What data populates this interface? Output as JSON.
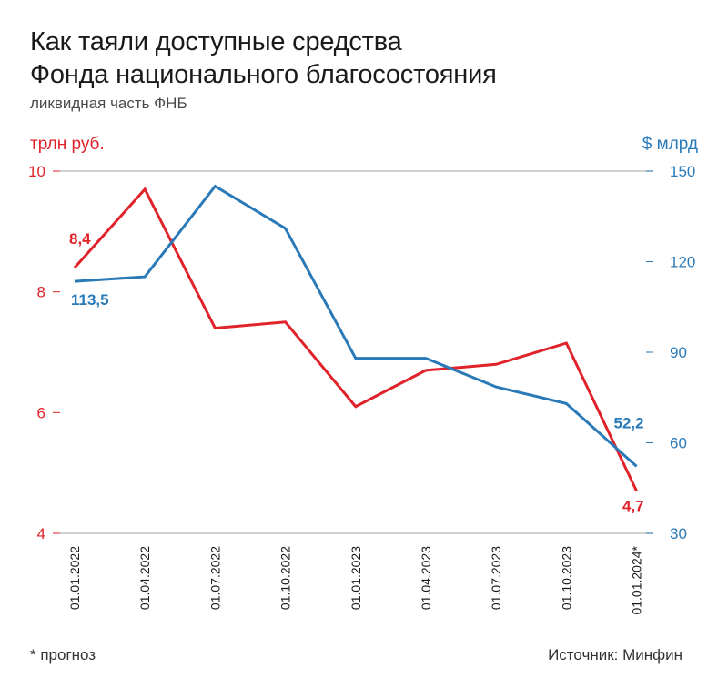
{
  "title_line1": "Как таяли доступные средства",
  "title_line2": "Фонда национального благосостояния",
  "subtitle": "ликвидная часть ФНБ",
  "footnote": "* прогноз",
  "source": "Источник: Минфин",
  "chart_data": {
    "type": "line",
    "categories": [
      "01.01.2022",
      "01.04.2022",
      "01.07.2022",
      "01.10.2022",
      "01.01.2023",
      "01.04.2023",
      "01.07.2023",
      "01.10.2023",
      "01.01.2024*"
    ],
    "y_left": {
      "label": "трлн руб.",
      "ylim": [
        4,
        10
      ],
      "ticks": [
        "4",
        "6",
        "8",
        "10"
      ],
      "color": "#e0232b"
    },
    "y_right": {
      "label": "$ млрд",
      "ylim": [
        30,
        150
      ],
      "ticks": [
        "30",
        "60",
        "90",
        "120",
        "150"
      ],
      "color": "#2a7ab8"
    },
    "series": [
      {
        "axis": "left",
        "color": "#e0232b",
        "values": [
          8.4,
          9.7,
          7.4,
          7.5,
          6.1,
          6.7,
          6.8,
          7.15,
          4.7
        ],
        "labels": [
          {
            "index": 0,
            "text": "8,4"
          },
          {
            "index": 8,
            "text": "4,7"
          }
        ]
      },
      {
        "axis": "right",
        "color": "#2a7ab8",
        "values": [
          113.5,
          115,
          145,
          131,
          88,
          88,
          78.5,
          73,
          52.2
        ],
        "labels": [
          {
            "index": 0,
            "text": "113,5"
          },
          {
            "index": 8,
            "text": "52,2"
          }
        ]
      }
    ],
    "grid": "top-and-bottom-lines"
  }
}
